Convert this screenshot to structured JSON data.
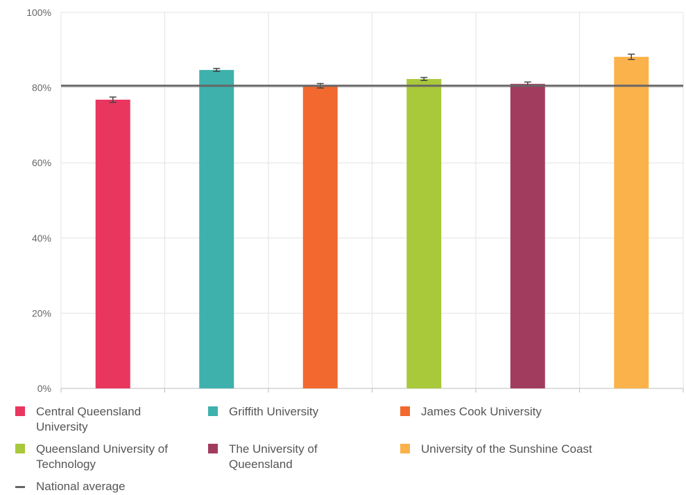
{
  "chart_data": {
    "type": "bar",
    "categories": [
      "Central Queensland University",
      "Griffith University",
      "James Cook University",
      "Queensland University of Technology",
      "The University of Queensland",
      "University of the Sunshine Coast"
    ],
    "values": [
      76.8,
      84.7,
      80.5,
      82.3,
      81.0,
      88.2
    ],
    "errors": [
      0.7,
      0.4,
      0.6,
      0.4,
      0.5,
      0.7
    ],
    "colors": [
      "#e8365f",
      "#3fb1ad",
      "#f2692f",
      "#a9c93a",
      "#a23c5e",
      "#fbb24b"
    ],
    "reference_line": {
      "label": "National average",
      "value": 80.5,
      "color": "#666666"
    },
    "ylim": [
      0,
      100
    ],
    "yticks": [
      "0%",
      "20%",
      "40%",
      "60%",
      "80%",
      "100%"
    ],
    "xlabel": "",
    "ylabel": "",
    "grid": true,
    "legend_position": "bottom"
  }
}
